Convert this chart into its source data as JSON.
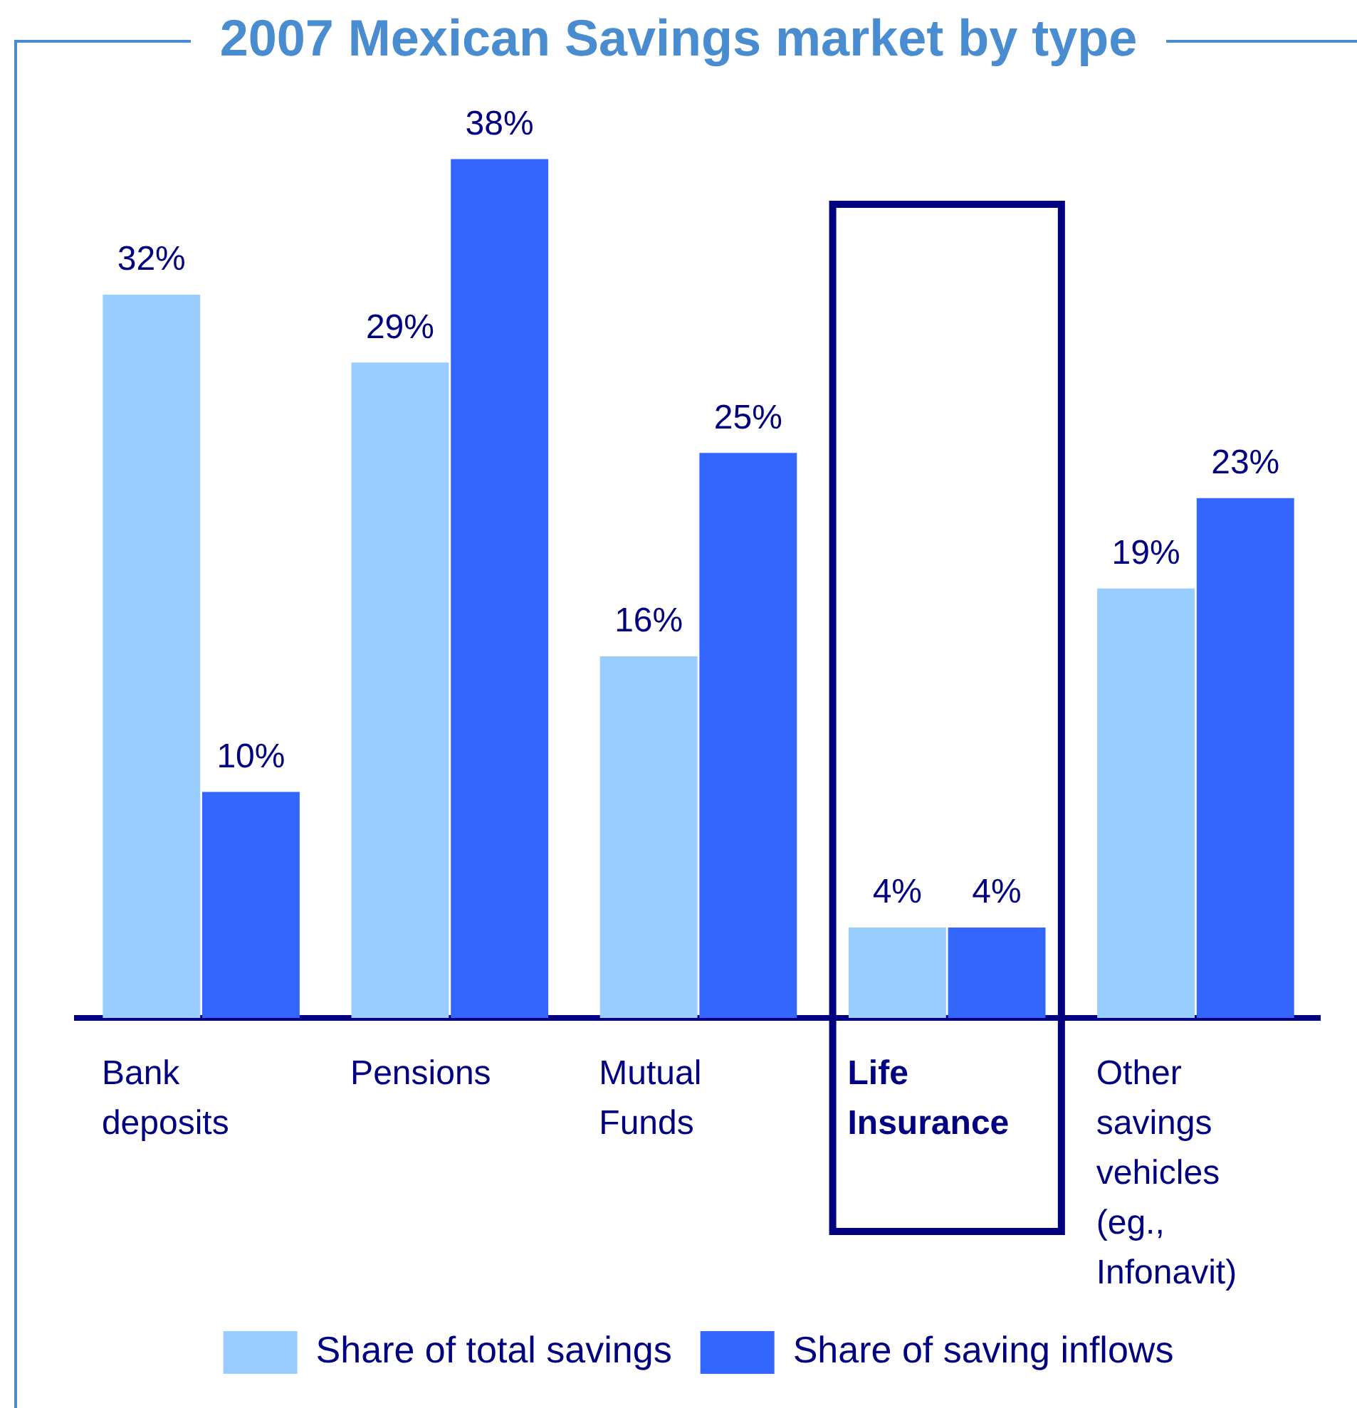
{
  "chart_data": {
    "type": "bar",
    "title": "2007 Mexican Savings market by type",
    "categories": [
      "Bank deposits",
      "Pensions",
      "Mutual Funds",
      "Life Insurance",
      "Other savings vehicles (eg., Infonavit)"
    ],
    "series": [
      {
        "name": "Share of total savings",
        "color": "#99ccff",
        "values": [
          32,
          29,
          16,
          4,
          19
        ],
        "value_labels": [
          "32%",
          "29%",
          "16%",
          "4%",
          "19%"
        ]
      },
      {
        "name": "Share of saving inflows",
        "color": "#3366ff",
        "values": [
          10,
          38,
          25,
          4,
          23
        ],
        "value_labels": [
          "10%",
          "38%",
          "25%",
          "4%",
          "23%"
        ]
      }
    ],
    "bands": [
      {
        "axis": "x",
        "from": "Life Insurance",
        "to": "Life Insurance",
        "color": "#000080"
      }
    ],
    "grid": false,
    "legend": "bottom"
  }
}
